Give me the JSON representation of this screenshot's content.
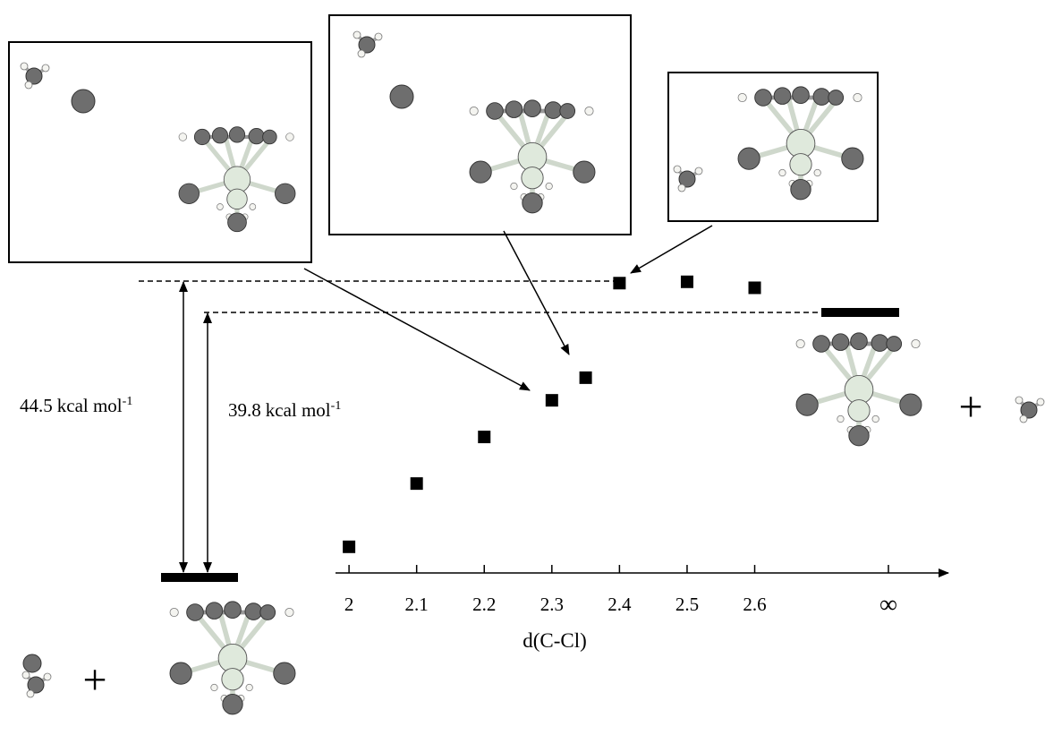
{
  "chart_data": {
    "type": "scatter",
    "xlabel": "d(C-Cl)",
    "x": [
      2,
      2.1,
      2.2,
      2.3,
      2.35,
      2.4,
      2.5,
      2.6
    ],
    "values": [
      4.6,
      14.1,
      21.1,
      26.6,
      30.0,
      44.2,
      44.4,
      43.5
    ],
    "color": "#000000",
    "xlim": [
      1.98,
      2.86
    ],
    "xticks": [
      2,
      2.1,
      2.2,
      2.3,
      2.4,
      2.5,
      2.6
    ],
    "infinity_label": "∞",
    "ylim": [
      0,
      48
    ],
    "reactant_energy": 0,
    "annotations": [
      {
        "value": 44.5,
        "unit": "kcal mol",
        "exponent": "-1"
      },
      {
        "value": 39.8,
        "unit": "kcal mol",
        "exponent": "-1"
      }
    ],
    "plus_signs": [
      "+",
      "+"
    ]
  }
}
